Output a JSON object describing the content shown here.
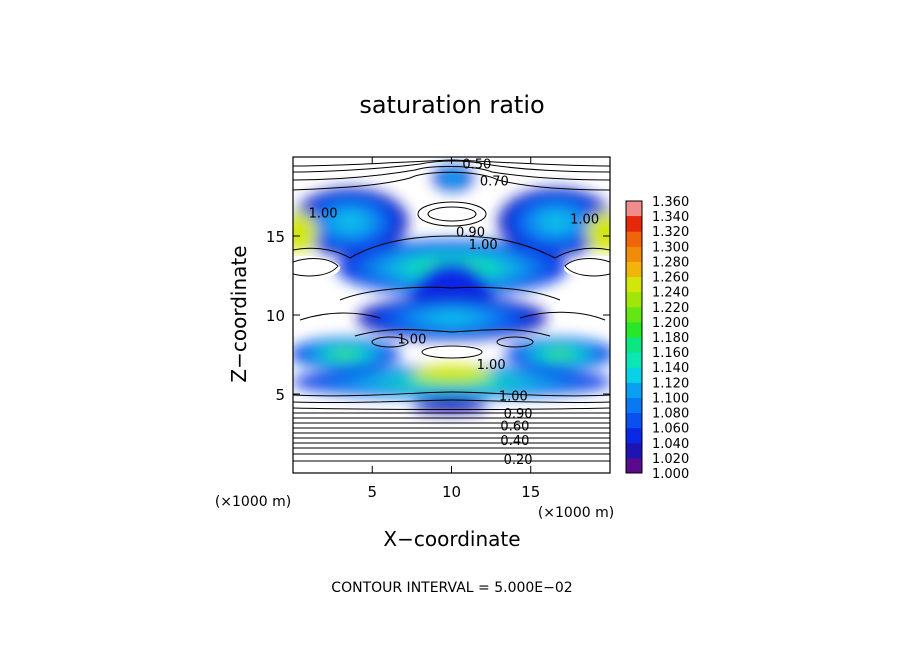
{
  "chart_data": {
    "type": "heatmap",
    "title": "saturation ratio",
    "xlabel": "X−coordinate",
    "ylabel": "Z−coordinate",
    "xunit": "(×1000 m)",
    "yunit": "(×1000 m)",
    "xlim": [
      0,
      20
    ],
    "ylim": [
      0,
      20
    ],
    "xticks": [
      {
        "v": 5,
        "label": "5"
      },
      {
        "v": 10,
        "label": "10"
      },
      {
        "v": 15,
        "label": "15"
      }
    ],
    "yticks": [
      {
        "v": 5,
        "label": "5"
      },
      {
        "v": 10,
        "label": "10"
      },
      {
        "v": 15,
        "label": "15"
      }
    ],
    "footer": "CONTOUR INTERVAL = 5.000E−02",
    "colorbar": {
      "levels": [
        "1.000",
        "1.020",
        "1.040",
        "1.060",
        "1.080",
        "1.100",
        "1.120",
        "1.140",
        "1.160",
        "1.180",
        "1.200",
        "1.220",
        "1.240",
        "1.260",
        "1.280",
        "1.300",
        "1.320",
        "1.340",
        "1.360"
      ],
      "colors": [
        "#5a0a8c",
        "#1e14b4",
        "#0a28e6",
        "#0a50f0",
        "#0a78f0",
        "#0aa0f0",
        "#0ad2e6",
        "#0ae6b4",
        "#0ae682",
        "#28e628",
        "#64e614",
        "#a0e60a",
        "#d2e60a",
        "#f0b40a",
        "#f08c0a",
        "#f0640a",
        "#e6280a",
        "#e61414",
        "#f08c8c"
      ]
    },
    "contour_labels": [
      {
        "x": 11.6,
        "z": 19.6,
        "label": "0.50"
      },
      {
        "x": 12.7,
        "z": 18.5,
        "label": "0.70"
      },
      {
        "x": 1.9,
        "z": 16.5,
        "label": "1.00"
      },
      {
        "x": 18.4,
        "z": 16.1,
        "label": "1.00"
      },
      {
        "x": 11.2,
        "z": 15.3,
        "label": "0.90"
      },
      {
        "x": 12.0,
        "z": 14.5,
        "label": "1.00"
      },
      {
        "x": 7.5,
        "z": 8.5,
        "label": "1.00"
      },
      {
        "x": 12.5,
        "z": 6.9,
        "label": "1.00"
      },
      {
        "x": 13.9,
        "z": 4.9,
        "label": "1.00"
      },
      {
        "x": 14.2,
        "z": 3.8,
        "label": "0.90"
      },
      {
        "x": 14.0,
        "z": 3.0,
        "label": "0.60"
      },
      {
        "x": 14.0,
        "z": 2.1,
        "label": "0.40"
      },
      {
        "x": 14.2,
        "z": 0.9,
        "label": "0.20"
      }
    ]
  }
}
